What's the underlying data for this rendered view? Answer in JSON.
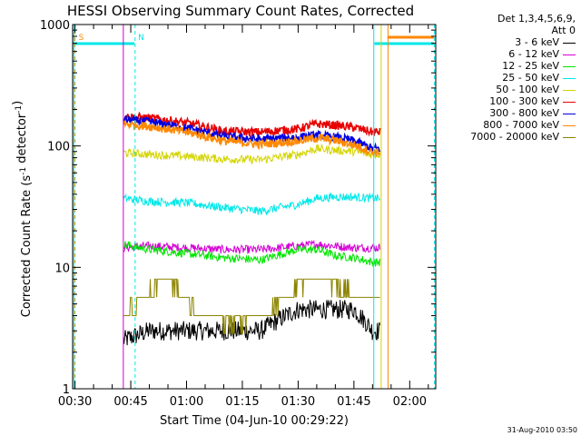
{
  "chart_data": {
    "type": "line",
    "title": "HESSI Observing Summary Count Rates, Corrected",
    "xlabel": "Start Time (04-Jun-10 00:29:22)",
    "ylabel": "Corrected Count Rate (s^-1 detector^-1)",
    "y_scale": "log",
    "ylim": [
      1,
      1000
    ],
    "xlim": [
      "00:29:22",
      "02:07:00"
    ],
    "x_ticks": [
      "00:30",
      "00:45",
      "01:00",
      "01:15",
      "01:30",
      "01:45",
      "02:00"
    ],
    "y_ticks": [
      "1",
      "10",
      "100",
      "1000"
    ],
    "grid": false,
    "legend_position": "right",
    "legend_header": [
      "Det 1,3,4,5,6,9,",
      "Att 0"
    ],
    "data_start": "00:43:00",
    "data_end": "01:52:00",
    "series": [
      {
        "name": "3 - 6 keV",
        "color": "#000000",
        "times": [
          "00:43",
          "00:50",
          "01:00",
          "01:10",
          "01:20",
          "01:30",
          "01:35",
          "01:40",
          "01:45",
          "01:50"
        ],
        "values": [
          2.5,
          3,
          3,
          3,
          3,
          4.5,
          4.5,
          4.5,
          4.5,
          3
        ]
      },
      {
        "name": "6 - 12 keV",
        "color": "#d400d4",
        "times": [
          "00:43",
          "00:50",
          "01:00",
          "01:10",
          "01:20",
          "01:30",
          "01:35",
          "01:40",
          "01:45",
          "01:50"
        ],
        "values": [
          14.5,
          15,
          14.5,
          14,
          14,
          15,
          15.5,
          15,
          14.5,
          14.5
        ]
      },
      {
        "name": "12 - 25 keV",
        "color": "#00e600",
        "times": [
          "00:43",
          "00:50",
          "01:00",
          "01:10",
          "01:20",
          "01:30",
          "01:35",
          "01:40",
          "01:45",
          "01:50"
        ],
        "values": [
          15.5,
          14,
          13,
          12,
          11.5,
          14,
          14,
          12.5,
          12,
          11
        ]
      },
      {
        "name": "25 - 50 keV",
        "color": "#00e8e8",
        "times": [
          "00:43",
          "00:50",
          "01:00",
          "01:10",
          "01:20",
          "01:30",
          "01:35",
          "01:40",
          "01:45",
          "01:50"
        ],
        "values": [
          37,
          35,
          34,
          31,
          29,
          33,
          37,
          38,
          38,
          37
        ]
      },
      {
        "name": "50 - 100 keV",
        "color": "#d4d400",
        "times": [
          "00:43",
          "00:50",
          "01:00",
          "01:10",
          "01:20",
          "01:30",
          "01:35",
          "01:40",
          "01:45",
          "01:50"
        ],
        "values": [
          88,
          85,
          82,
          78,
          77,
          85,
          95,
          92,
          90,
          85
        ]
      },
      {
        "name": "100 - 300 keV",
        "color": "#e80000",
        "times": [
          "00:43",
          "00:50",
          "01:00",
          "01:10",
          "01:20",
          "01:30",
          "01:35",
          "01:40",
          "01:45",
          "01:50"
        ],
        "values": [
          175,
          170,
          155,
          132,
          130,
          138,
          152,
          148,
          142,
          130
        ]
      },
      {
        "name": "300 - 800 keV",
        "color": "#0000e0",
        "times": [
          "00:43",
          "00:50",
          "01:00",
          "01:10",
          "01:20",
          "01:30",
          "01:35",
          "01:40",
          "01:45",
          "01:50"
        ],
        "values": [
          165,
          158,
          140,
          120,
          113,
          118,
          122,
          118,
          110,
          95
        ]
      },
      {
        "name": "800 - 7000 keV",
        "color": "#ff8800",
        "times": [
          "00:43",
          "00:50",
          "01:00",
          "01:10",
          "01:20",
          "01:30",
          "01:35",
          "01:40",
          "01:45",
          "01:50"
        ],
        "values": [
          152,
          145,
          130,
          110,
          103,
          110,
          116,
          111,
          102,
          89
        ]
      },
      {
        "name": "7000 - 20000 keV",
        "color": "#8b8400",
        "times": [
          "00:43",
          "00:47",
          "00:52",
          "00:55",
          "01:00",
          "01:05",
          "01:10",
          "01:15",
          "01:20",
          "01:25",
          "01:30",
          "01:35",
          "01:40",
          "01:45",
          "01:50"
        ],
        "values": [
          4,
          5,
          7,
          8,
          5,
          4,
          3.5,
          3.5,
          4,
          5,
          7,
          8,
          7,
          6,
          5.5
        ]
      }
    ],
    "annotations": [
      {
        "text": "S",
        "time": "00:30",
        "color": "#ff8800"
      },
      {
        "text": "N",
        "time": "00:46",
        "color": "#00e8e8"
      }
    ]
  },
  "footer": "31-Aug-2010 03:50"
}
